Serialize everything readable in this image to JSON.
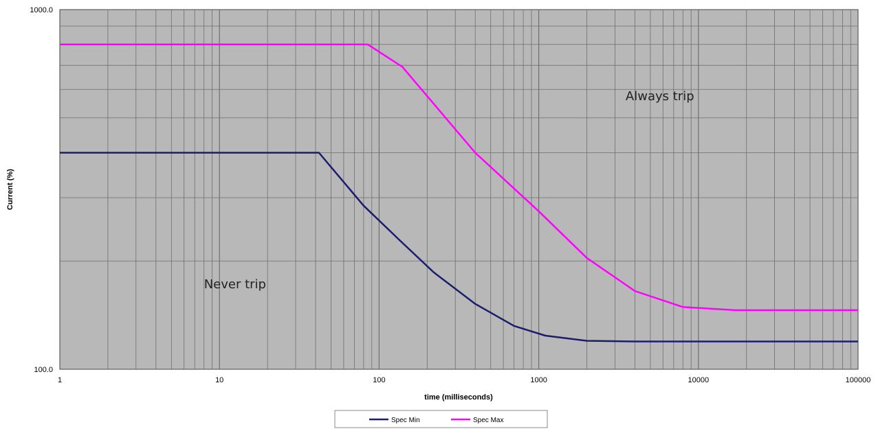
{
  "chart_data": {
    "type": "line",
    "xlabel": "time (milliseconds)",
    "ylabel": "Current (%)",
    "x_scale": "log",
    "y_scale": "log",
    "xlim": [
      1,
      100000
    ],
    "ylim": [
      100,
      1000
    ],
    "x_tick_labels": [
      "1",
      "10",
      "100",
      "1000",
      "10000",
      "100000"
    ],
    "y_tick_labels": [
      "100.0",
      "1000.0"
    ],
    "grid": true,
    "legend_position": "bottom",
    "annotations": [
      {
        "text": "Always trip",
        "x": 3500,
        "y": 560
      },
      {
        "text": "Never trip",
        "x": 8,
        "y": 168
      }
    ],
    "series": [
      {
        "name": "Spec Min",
        "color": "#1c1c6e",
        "x": [
          1,
          42,
          80,
          135,
          220,
          400,
          700,
          1100,
          2000,
          4000,
          10000,
          100000
        ],
        "y": [
          400,
          400,
          285,
          228,
          186,
          152,
          132,
          124,
          120,
          119.5,
          119.5,
          119.5
        ]
      },
      {
        "name": "Spec Max",
        "color": "#ff00ff",
        "x": [
          1,
          85,
          140,
          400,
          1000,
          2000,
          4000,
          8000,
          17000,
          100000
        ],
        "y": [
          800,
          800,
          693,
          400,
          275,
          204,
          165,
          149,
          146,
          146
        ]
      }
    ],
    "colors": {
      "plot_background": "#b8b8b8",
      "grid": "#6e6e6e",
      "spec_min": "#1c1c6e",
      "spec_max": "#ff00ff"
    }
  }
}
